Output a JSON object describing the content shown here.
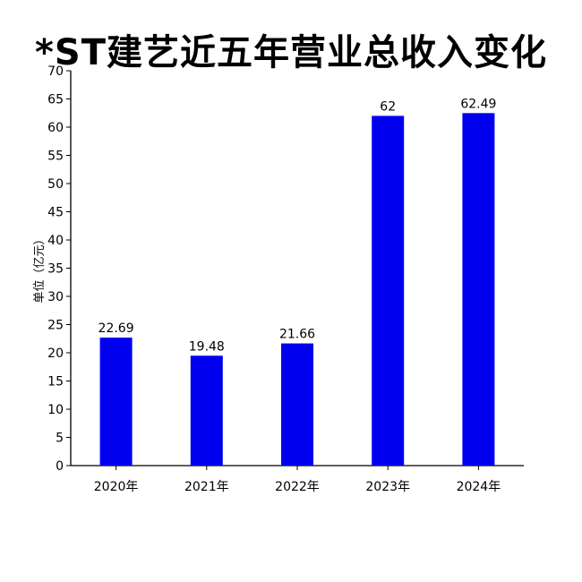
{
  "chart_data": {
    "type": "bar",
    "title": "*ST建艺近五年营业总收入变化",
    "ylabel": "单位（亿元）",
    "xlabel": "",
    "categories": [
      "2020年",
      "2021年",
      "2022年",
      "2023年",
      "2024年"
    ],
    "values": [
      22.69,
      19.48,
      21.66,
      62,
      62.49
    ],
    "value_labels": [
      "22.69",
      "19.48",
      "21.66",
      "62",
      "62.49"
    ],
    "ylim": [
      0,
      70
    ],
    "yticks": [
      0,
      5,
      10,
      15,
      20,
      25,
      30,
      35,
      40,
      45,
      50,
      55,
      60,
      65,
      70
    ],
    "bar_color": "#0000ee",
    "grid": false
  }
}
